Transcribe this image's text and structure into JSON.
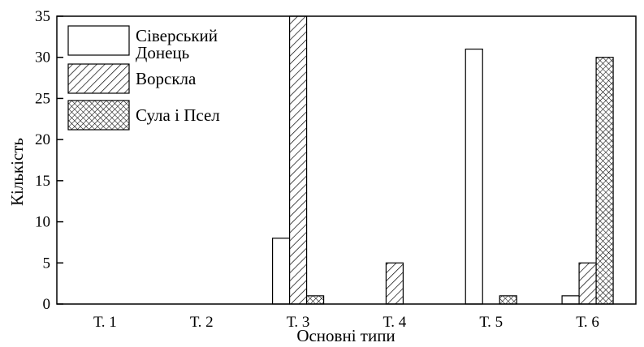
{
  "chart_data": {
    "type": "bar",
    "title": "",
    "xlabel": "Основні типи",
    "ylabel": "Кількість",
    "ylim": [
      0,
      35
    ],
    "yticks": [
      0,
      5,
      10,
      15,
      20,
      25,
      30,
      35
    ],
    "categories": [
      "Т. 1",
      "Т. 2",
      "Т. 3",
      "Т. 4",
      "Т. 5",
      "Т. 6"
    ],
    "series": [
      {
        "name": "Сіверський Донець",
        "name_lines": [
          "Сіверський",
          "Донець"
        ],
        "pattern": "solid-white",
        "values": [
          0,
          0,
          8,
          0,
          31,
          1
        ]
      },
      {
        "name": "Ворскла",
        "name_lines": [
          "Ворскла"
        ],
        "pattern": "diagonal-hatch",
        "values": [
          0,
          0,
          35,
          5,
          0,
          5
        ]
      },
      {
        "name": "Сула і Псел",
        "name_lines": [
          "Сула і Псел"
        ],
        "pattern": "cross-hatch",
        "values": [
          0,
          0,
          1,
          0,
          1,
          30
        ]
      }
    ],
    "legend_position": "top-left",
    "grid": false
  }
}
